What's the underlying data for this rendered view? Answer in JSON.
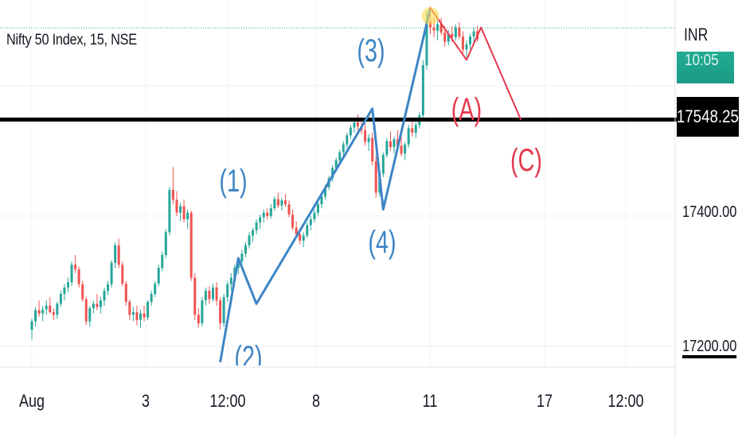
{
  "title": "Nifty 50 Index, 15, NSE",
  "currency": "INR",
  "current_price_label": "17548.25",
  "green_tag_label": "10:05",
  "colors": {
    "up": "#26a69a",
    "down": "#ef5350",
    "wave_blue": "#3d85c6",
    "wave_red": "#e53950",
    "level_line": "#000000"
  },
  "chart_data": {
    "type": "candlestick",
    "title": "Nifty 50 Index, 15, NSE",
    "ylim": [
      17170,
      17720
    ],
    "y_ticks": [
      "17200.00",
      "17400.00"
    ],
    "x_ticks": [
      "Aug",
      "3",
      "12:00",
      "8",
      "11",
      "17",
      "12:00"
    ],
    "horizontal_level": 17548.25,
    "wave_labels_impulse": [
      "(1)",
      "(2)",
      "(3)",
      "(4)"
    ],
    "wave_labels_correction": [
      "(A)",
      "(C)"
    ],
    "impulse_path": [
      {
        "bar": 52,
        "price": 17175
      },
      {
        "bar": 57,
        "price": 17335
      },
      {
        "bar": 62,
        "price": 17265
      },
      {
        "bar": 94,
        "price": 17565
      },
      {
        "bar": 97,
        "price": 17410
      },
      {
        "bar": 110,
        "price": 17720
      }
    ],
    "correction_path": [
      {
        "bar": 110,
        "price": 17720
      },
      {
        "bar": 120,
        "price": 17640
      },
      {
        "bar": 124,
        "price": 17690
      },
      {
        "bar": 135,
        "price": 17548
      }
    ],
    "candles": [
      [
        17225,
        17242,
        17210,
        17238
      ],
      [
        17238,
        17260,
        17230,
        17255
      ],
      [
        17255,
        17270,
        17245,
        17250
      ],
      [
        17250,
        17262,
        17238,
        17256
      ],
      [
        17256,
        17270,
        17248,
        17262
      ],
      [
        17262,
        17275,
        17250,
        17252
      ],
      [
        17252,
        17258,
        17240,
        17248
      ],
      [
        17248,
        17268,
        17242,
        17265
      ],
      [
        17265,
        17285,
        17260,
        17280
      ],
      [
        17280,
        17295,
        17270,
        17290
      ],
      [
        17290,
        17305,
        17282,
        17298
      ],
      [
        17298,
        17330,
        17292,
        17325
      ],
      [
        17325,
        17340,
        17312,
        17318
      ],
      [
        17318,
        17322,
        17290,
        17295
      ],
      [
        17295,
        17300,
        17268,
        17272
      ],
      [
        17272,
        17276,
        17232,
        17238
      ],
      [
        17238,
        17262,
        17230,
        17258
      ],
      [
        17258,
        17270,
        17250,
        17265
      ],
      [
        17265,
        17280,
        17255,
        17260
      ],
      [
        17260,
        17275,
        17250,
        17270
      ],
      [
        17270,
        17290,
        17262,
        17285
      ],
      [
        17285,
        17300,
        17278,
        17295
      ],
      [
        17295,
        17332,
        17290,
        17328
      ],
      [
        17328,
        17360,
        17320,
        17355
      ],
      [
        17355,
        17365,
        17320,
        17325
      ],
      [
        17325,
        17330,
        17292,
        17296
      ],
      [
        17296,
        17300,
        17262,
        17268
      ],
      [
        17268,
        17272,
        17240,
        17248
      ],
      [
        17248,
        17260,
        17238,
        17252
      ],
      [
        17252,
        17262,
        17232,
        17240
      ],
      [
        17240,
        17256,
        17228,
        17250
      ],
      [
        17250,
        17262,
        17238,
        17244
      ],
      [
        17244,
        17270,
        17240,
        17268
      ],
      [
        17268,
        17285,
        17262,
        17280
      ],
      [
        17280,
        17300,
        17275,
        17296
      ],
      [
        17296,
        17325,
        17292,
        17320
      ],
      [
        17320,
        17345,
        17315,
        17340
      ],
      [
        17340,
        17380,
        17335,
        17375
      ],
      [
        17375,
        17445,
        17370,
        17440
      ],
      [
        17440,
        17475,
        17418,
        17425
      ],
      [
        17425,
        17438,
        17400,
        17405
      ],
      [
        17405,
        17420,
        17392,
        17415
      ],
      [
        17415,
        17425,
        17390,
        17395
      ],
      [
        17395,
        17410,
        17380,
        17405
      ],
      [
        17405,
        17408,
        17300,
        17305
      ],
      [
        17305,
        17312,
        17240,
        17248
      ],
      [
        17248,
        17258,
        17228,
        17235
      ],
      [
        17235,
        17275,
        17230,
        17270
      ],
      [
        17270,
        17290,
        17262,
        17285
      ],
      [
        17285,
        17292,
        17265,
        17272
      ],
      [
        17272,
        17296,
        17268,
        17290
      ],
      [
        17290,
        17298,
        17262,
        17270
      ],
      [
        17270,
        17275,
        17225,
        17235
      ],
      [
        17235,
        17280,
        17230,
        17275
      ],
      [
        17275,
        17300,
        17268,
        17295
      ],
      [
        17295,
        17312,
        17285,
        17305
      ],
      [
        17305,
        17325,
        17298,
        17320
      ],
      [
        17320,
        17335,
        17310,
        17330
      ],
      [
        17330,
        17348,
        17322,
        17342
      ],
      [
        17342,
        17360,
        17336,
        17355
      ],
      [
        17355,
        17375,
        17350,
        17370
      ],
      [
        17370,
        17382,
        17360,
        17378
      ],
      [
        17378,
        17395,
        17372,
        17390
      ],
      [
        17390,
        17402,
        17380,
        17398
      ],
      [
        17398,
        17410,
        17390,
        17405
      ],
      [
        17405,
        17412,
        17395,
        17400
      ],
      [
        17400,
        17418,
        17396,
        17412
      ],
      [
        17412,
        17430,
        17408,
        17426
      ],
      [
        17426,
        17436,
        17412,
        17416
      ],
      [
        17416,
        17428,
        17408,
        17424
      ],
      [
        17424,
        17434,
        17414,
        17418
      ],
      [
        17418,
        17424,
        17398,
        17402
      ],
      [
        17402,
        17410,
        17378,
        17382
      ],
      [
        17382,
        17392,
        17368,
        17372
      ],
      [
        17372,
        17380,
        17356,
        17362
      ],
      [
        17362,
        17375,
        17352,
        17370
      ],
      [
        17370,
        17390,
        17366,
        17386
      ],
      [
        17386,
        17400,
        17378,
        17395
      ],
      [
        17395,
        17410,
        17390,
        17405
      ],
      [
        17405,
        17422,
        17400,
        17418
      ],
      [
        17418,
        17435,
        17412,
        17430
      ],
      [
        17430,
        17448,
        17425,
        17444
      ],
      [
        17444,
        17462,
        17440,
        17458
      ],
      [
        17458,
        17478,
        17452,
        17474
      ],
      [
        17474,
        17490,
        17468,
        17486
      ],
      [
        17486,
        17502,
        17480,
        17498
      ],
      [
        17498,
        17515,
        17492,
        17510
      ],
      [
        17510,
        17528,
        17505,
        17524
      ],
      [
        17524,
        17540,
        17518,
        17536
      ],
      [
        17536,
        17548,
        17528,
        17544
      ],
      [
        17544,
        17556,
        17532,
        17538
      ],
      [
        17538,
        17550,
        17526,
        17532
      ],
      [
        17532,
        17542,
        17508,
        17514
      ],
      [
        17514,
        17526,
        17500,
        17520
      ],
      [
        17520,
        17528,
        17478,
        17484
      ],
      [
        17484,
        17492,
        17428,
        17436
      ],
      [
        17436,
        17470,
        17430,
        17465
      ],
      [
        17465,
        17498,
        17460,
        17494
      ],
      [
        17494,
        17520,
        17490,
        17515
      ],
      [
        17515,
        17530,
        17500,
        17506
      ],
      [
        17506,
        17522,
        17496,
        17518
      ],
      [
        17518,
        17532,
        17502,
        17508
      ],
      [
        17508,
        17525,
        17492,
        17496
      ],
      [
        17496,
        17514,
        17486,
        17510
      ],
      [
        17510,
        17540,
        17505,
        17535
      ],
      [
        17535,
        17548,
        17522,
        17528
      ],
      [
        17528,
        17545,
        17520,
        17540
      ],
      [
        17540,
        17560,
        17535,
        17555
      ],
      [
        17555,
        17640,
        17550,
        17632
      ],
      [
        17632,
        17715,
        17625,
        17700
      ],
      [
        17700,
        17722,
        17680,
        17690
      ],
      [
        17690,
        17705,
        17675,
        17685
      ],
      [
        17685,
        17700,
        17670,
        17695
      ],
      [
        17695,
        17705,
        17678,
        17682
      ],
      [
        17682,
        17692,
        17660,
        17668
      ],
      [
        17668,
        17686,
        17662,
        17680
      ],
      [
        17680,
        17692,
        17668,
        17675
      ],
      [
        17675,
        17695,
        17670,
        17690
      ],
      [
        17690,
        17698,
        17672,
        17676
      ],
      [
        17676,
        17684,
        17650,
        17656
      ],
      [
        17656,
        17670,
        17644,
        17664
      ],
      [
        17664,
        17680,
        17656,
        17676
      ],
      [
        17676,
        17690,
        17665,
        17684
      ],
      [
        17684,
        17692,
        17668,
        17672
      ]
    ]
  }
}
